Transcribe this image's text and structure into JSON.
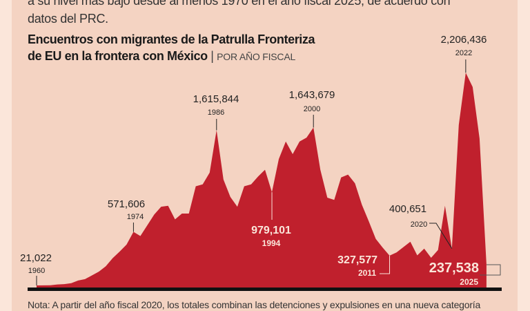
{
  "intro": {
    "line1": "a su nivel más bajo desde al menos 1970 en el año fiscal 2025, de acuerdo con",
    "line2": "datos del PRC."
  },
  "title": {
    "line1": "Encuentros con migrantes de la Patrulla Fronteriza",
    "line2": "de EU en la frontera con México",
    "separator": "|",
    "subtitle": "POR AÑO FISCAL"
  },
  "note": "Nota: A partir del año fiscal 2020, los totales combinan las detenciones y expulsiones en una nueva categoría",
  "colors": {
    "area": "#c0202d",
    "panel": "#f4d3c2",
    "background": "#fbe6da",
    "baseline": "#111111"
  },
  "chart_data": {
    "type": "area",
    "title": "Encuentros con migrantes de la Patrulla Fronteriza de EU en la frontera con México",
    "subtitle": "POR AÑO FISCAL",
    "xlim": [
      1960,
      2025
    ],
    "ylim": [
      0,
      2300000
    ],
    "grid": false,
    "x": [
      1960,
      1961,
      1962,
      1963,
      1964,
      1965,
      1966,
      1967,
      1968,
      1969,
      1970,
      1971,
      1972,
      1973,
      1974,
      1975,
      1976,
      1977,
      1978,
      1979,
      1980,
      1981,
      1982,
      1983,
      1984,
      1985,
      1986,
      1987,
      1988,
      1989,
      1990,
      1991,
      1992,
      1993,
      1994,
      1995,
      1996,
      1997,
      1998,
      1999,
      2000,
      2001,
      2002,
      2003,
      2004,
      2005,
      2006,
      2007,
      2008,
      2009,
      2010,
      2011,
      2012,
      2013,
      2014,
      2015,
      2016,
      2017,
      2018,
      2019,
      2020,
      2021,
      2022,
      2023,
      2024,
      2025
    ],
    "values": [
      21022,
      22000,
      23000,
      31000,
      35000,
      45000,
      72000,
      86000,
      124000,
      163000,
      219000,
      302000,
      369000,
      441000,
      571606,
      529000,
      640000,
      750000,
      830000,
      840000,
      700000,
      760000,
      760000,
      1040000,
      1060000,
      1180000,
      1615844,
      1110000,
      930000,
      830000,
      1040000,
      1060000,
      1140000,
      1210000,
      979101,
      1320000,
      1500000,
      1370000,
      1500000,
      1540000,
      1643679,
      1210000,
      923000,
      900000,
      1130000,
      1160000,
      1070000,
      850000,
      680000,
      500000,
      410000,
      327577,
      360000,
      415000,
      470000,
      330000,
      400000,
      305000,
      385000,
      840000,
      400651,
      1670000,
      2206436,
      2060000,
      1530000,
      237538
    ],
    "annotations": [
      {
        "year": 1960,
        "value_label": "21,022",
        "year_label": "1960"
      },
      {
        "year": 1974,
        "value_label": "571,606",
        "year_label": "1974"
      },
      {
        "year": 1986,
        "value_label": "1,615,844",
        "year_label": "1986"
      },
      {
        "year": 1994,
        "value_label": "979,101",
        "year_label": "1994"
      },
      {
        "year": 2000,
        "value_label": "1,643,679",
        "year_label": "2000"
      },
      {
        "year": 2011,
        "value_label": "327,577",
        "year_label": "2011"
      },
      {
        "year": 2020,
        "value_label": "400,651",
        "year_label": "2020"
      },
      {
        "year": 2022,
        "value_label": "2,206,436",
        "year_label": "2022"
      },
      {
        "year": 2025,
        "value_label": "237,538",
        "year_label": "2025"
      }
    ]
  }
}
